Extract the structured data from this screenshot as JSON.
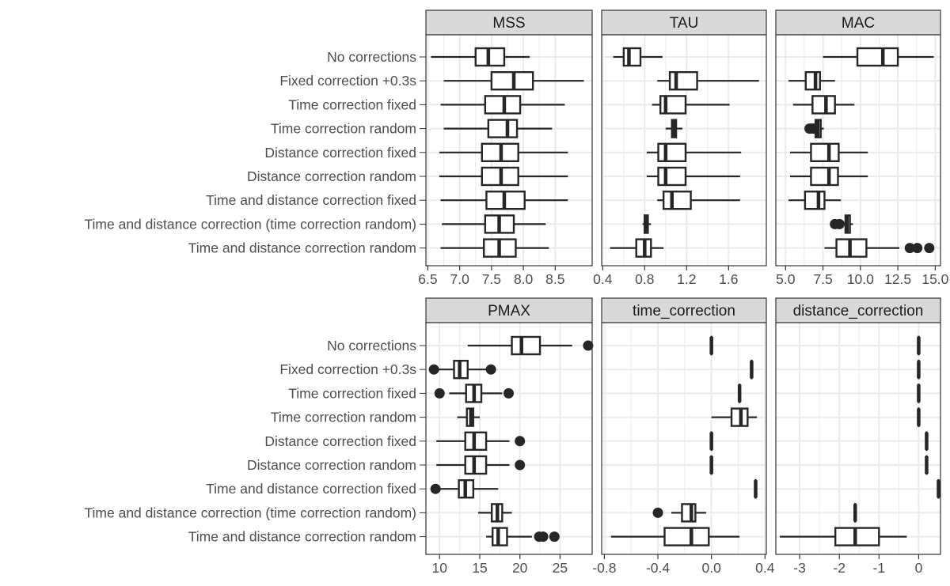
{
  "chart_data": {
    "type": "boxplot",
    "categories": [
      "No corrections",
      "Fixed correction +0.3s",
      "Time correction fixed",
      "Time correction random",
      "Distance correction fixed",
      "Distance correction random",
      "Time and distance correction fixed",
      "Time and distance correction (time correction random)",
      "Time and distance correction random"
    ],
    "colors": {
      "strip_fill": "#d9d9d9",
      "box_stroke": "#262626",
      "grid": "#ebebeb",
      "panel_border": "#333333"
    },
    "panels": [
      {
        "title": "MSS",
        "xlim": [
          6.47,
          9.08
        ],
        "ticks": [
          6.5,
          7.0,
          7.5,
          8.0,
          8.5
        ],
        "tick_labels": [
          "6.5",
          "7.0",
          "7.5",
          "8.0",
          "8.5"
        ],
        "boxes": [
          {
            "wmin": 6.55,
            "q1": 7.25,
            "med": 7.45,
            "q3": 7.7,
            "wmax": 8.1,
            "outliers": []
          },
          {
            "wmin": 6.75,
            "q1": 7.5,
            "med": 7.85,
            "q3": 8.15,
            "wmax": 8.95,
            "outliers": []
          },
          {
            "wmin": 6.7,
            "q1": 7.4,
            "med": 7.7,
            "q3": 7.95,
            "wmax": 8.65,
            "outliers": []
          },
          {
            "wmin": 6.75,
            "q1": 7.45,
            "med": 7.75,
            "q3": 7.9,
            "wmax": 8.45,
            "outliers": []
          },
          {
            "wmin": 6.68,
            "q1": 7.35,
            "med": 7.65,
            "q3": 7.92,
            "wmax": 8.7,
            "outliers": []
          },
          {
            "wmin": 6.68,
            "q1": 7.35,
            "med": 7.65,
            "q3": 7.92,
            "wmax": 8.7,
            "outliers": []
          },
          {
            "wmin": 6.7,
            "q1": 7.42,
            "med": 7.7,
            "q3": 8.02,
            "wmax": 8.7,
            "outliers": []
          },
          {
            "wmin": 6.72,
            "q1": 7.4,
            "med": 7.62,
            "q3": 7.85,
            "wmax": 8.35,
            "outliers": []
          },
          {
            "wmin": 6.7,
            "q1": 7.38,
            "med": 7.62,
            "q3": 7.88,
            "wmax": 8.4,
            "outliers": []
          }
        ]
      },
      {
        "title": "TAU",
        "xlim": [
          0.39,
          1.96
        ],
        "ticks": [
          0.4,
          0.8,
          1.2,
          1.6
        ],
        "tick_labels": [
          "0.4",
          "0.8",
          "1.2",
          "1.6"
        ],
        "boxes": [
          {
            "wmin": 0.5,
            "q1": 0.6,
            "med": 0.65,
            "q3": 0.76,
            "wmax": 0.97,
            "outliers": []
          },
          {
            "wmin": 0.92,
            "q1": 1.04,
            "med": 1.1,
            "q3": 1.3,
            "wmax": 1.89,
            "outliers": []
          },
          {
            "wmin": 0.87,
            "q1": 0.95,
            "med": 1.0,
            "q3": 1.19,
            "wmax": 1.61,
            "outliers": []
          },
          {
            "wmin": 1.0,
            "q1": 1.06,
            "med": 1.08,
            "q3": 1.1,
            "wmax": 1.16,
            "outliers": []
          },
          {
            "wmin": 0.82,
            "q1": 0.93,
            "med": 1.0,
            "q3": 1.19,
            "wmax": 1.72,
            "outliers": []
          },
          {
            "wmin": 0.82,
            "q1": 0.93,
            "med": 1.0,
            "q3": 1.19,
            "wmax": 1.71,
            "outliers": []
          },
          {
            "wmin": 0.92,
            "q1": 0.98,
            "med": 1.06,
            "q3": 1.24,
            "wmax": 1.71,
            "outliers": []
          },
          {
            "wmin": 0.78,
            "q1": 0.8,
            "med": 0.82,
            "q3": 0.83,
            "wmax": 0.86,
            "outliers": []
          },
          {
            "wmin": 0.47,
            "q1": 0.72,
            "med": 0.8,
            "q3": 0.86,
            "wmax": 0.98,
            "outliers": []
          }
        ]
      },
      {
        "title": "MAC",
        "xlim": [
          4.35,
          15.35
        ],
        "ticks": [
          5.0,
          7.5,
          10.0,
          12.5,
          15.0
        ],
        "tick_labels": [
          "5.0",
          "7.5",
          "10.0",
          "12.5",
          "15.0"
        ],
        "boxes": [
          {
            "wmin": 7.5,
            "q1": 9.8,
            "med": 11.5,
            "q3": 12.5,
            "wmax": 14.9,
            "outliers": []
          },
          {
            "wmin": 5.2,
            "q1": 6.35,
            "med": 7.0,
            "q3": 7.3,
            "wmax": 8.3,
            "outliers": []
          },
          {
            "wmin": 5.5,
            "q1": 6.8,
            "med": 7.7,
            "q3": 8.3,
            "wmax": 9.6,
            "outliers": []
          },
          {
            "wmin": 6.7,
            "q1": 7.0,
            "med": 7.15,
            "q3": 7.35,
            "wmax": 7.55,
            "outliers": [
              6.6,
              6.75,
              6.9
            ]
          },
          {
            "wmin": 5.3,
            "q1": 6.7,
            "med": 7.9,
            "q3": 8.55,
            "wmax": 10.5,
            "outliers": []
          },
          {
            "wmin": 5.3,
            "q1": 6.7,
            "med": 7.9,
            "q3": 8.5,
            "wmax": 10.5,
            "outliers": []
          },
          {
            "wmin": 5.2,
            "q1": 6.3,
            "med": 7.2,
            "q3": 7.6,
            "wmax": 8.7,
            "outliers": []
          },
          {
            "wmin": 8.9,
            "q1": 9.0,
            "med": 9.1,
            "q3": 9.3,
            "wmax": 9.5,
            "outliers": [
              8.3,
              8.6
            ]
          },
          {
            "wmin": 7.6,
            "q1": 8.4,
            "med": 9.3,
            "q3": 10.4,
            "wmax": 12.6,
            "outliers": [
              13.3,
              13.8,
              14.6
            ]
          }
        ]
      },
      {
        "title": "PMAX",
        "xlim": [
          8.3,
          29.0
        ],
        "ticks": [
          10,
          15,
          20,
          25
        ],
        "tick_labels": [
          "10",
          "15",
          "20",
          "25"
        ],
        "boxes": [
          {
            "wmin": 13.5,
            "q1": 19.0,
            "med": 20.2,
            "q3": 22.5,
            "wmax": 26.5,
            "outliers": [
              28.5
            ]
          },
          {
            "wmin": 9.8,
            "q1": 11.8,
            "med": 12.5,
            "q3": 13.5,
            "wmax": 15.8,
            "outliers": [
              9.3,
              16.4
            ]
          },
          {
            "wmin": 11.2,
            "q1": 13.3,
            "med": 14.3,
            "q3": 15.2,
            "wmax": 17.8,
            "outliers": [
              10.0,
              18.6
            ]
          },
          {
            "wmin": 12.2,
            "q1": 13.4,
            "med": 13.9,
            "q3": 14.2,
            "wmax": 15.0,
            "outliers": []
          },
          {
            "wmin": 9.6,
            "q1": 13.2,
            "med": 14.3,
            "q3": 15.8,
            "wmax": 18.7,
            "outliers": [
              20.0
            ]
          },
          {
            "wmin": 9.6,
            "q1": 13.2,
            "med": 14.3,
            "q3": 15.8,
            "wmax": 18.7,
            "outliers": [
              20.0
            ]
          },
          {
            "wmin": 9.8,
            "q1": 12.4,
            "med": 13.2,
            "q3": 14.2,
            "wmax": 17.3,
            "outliers": [
              9.5
            ]
          },
          {
            "wmin": 14.8,
            "q1": 16.5,
            "med": 17.2,
            "q3": 17.8,
            "wmax": 19.0,
            "outliers": []
          },
          {
            "wmin": 15.8,
            "q1": 16.6,
            "med": 17.3,
            "q3": 18.4,
            "wmax": 21.5,
            "outliers": [
              22.4,
              22.9,
              24.3
            ]
          }
        ]
      },
      {
        "title": "time_correction",
        "xlim": [
          -0.82,
          0.41
        ],
        "ticks": [
          -0.8,
          -0.4,
          0.0,
          0.4
        ],
        "tick_labels": [
          "-0.8",
          "-0.4",
          "0.0",
          "0.4"
        ],
        "boxes": [
          {
            "wmin": 0.0,
            "q1": 0.0,
            "med": 0.0,
            "q3": 0.0,
            "wmax": 0.0,
            "outliers": []
          },
          {
            "wmin": 0.3,
            "q1": 0.3,
            "med": 0.3,
            "q3": 0.3,
            "wmax": 0.3,
            "outliers": []
          },
          {
            "wmin": 0.21,
            "q1": 0.21,
            "med": 0.21,
            "q3": 0.21,
            "wmax": 0.21,
            "outliers": []
          },
          {
            "wmin": 0.0,
            "q1": 0.15,
            "med": 0.22,
            "q3": 0.27,
            "wmax": 0.34,
            "outliers": []
          },
          {
            "wmin": 0.0,
            "q1": 0.0,
            "med": 0.0,
            "q3": 0.0,
            "wmax": 0.0,
            "outliers": []
          },
          {
            "wmin": 0.0,
            "q1": 0.0,
            "med": 0.0,
            "q3": 0.0,
            "wmax": 0.0,
            "outliers": []
          },
          {
            "wmin": 0.33,
            "q1": 0.33,
            "med": 0.33,
            "q3": 0.33,
            "wmax": 0.33,
            "outliers": []
          },
          {
            "wmin": -0.3,
            "q1": -0.22,
            "med": -0.15,
            "q3": -0.12,
            "wmax": -0.04,
            "outliers": [
              -0.4
            ]
          },
          {
            "wmin": -0.75,
            "q1": -0.35,
            "med": -0.15,
            "q3": -0.02,
            "wmax": 0.21,
            "outliers": []
          }
        ]
      },
      {
        "title": "distance_correction",
        "xlim": [
          -3.6,
          0.55
        ],
        "ticks": [
          -3,
          -2,
          -1,
          0
        ],
        "tick_labels": [
          "-3",
          "-2",
          "-1",
          "0"
        ],
        "boxes": [
          {
            "wmin": 0.0,
            "q1": 0.0,
            "med": 0.0,
            "q3": 0.0,
            "wmax": 0.0,
            "outliers": []
          },
          {
            "wmin": 0.0,
            "q1": 0.0,
            "med": 0.0,
            "q3": 0.0,
            "wmax": 0.0,
            "outliers": []
          },
          {
            "wmin": 0.0,
            "q1": 0.0,
            "med": 0.0,
            "q3": 0.0,
            "wmax": 0.0,
            "outliers": []
          },
          {
            "wmin": 0.0,
            "q1": 0.0,
            "med": 0.0,
            "q3": 0.0,
            "wmax": 0.0,
            "outliers": []
          },
          {
            "wmin": 0.2,
            "q1": 0.2,
            "med": 0.2,
            "q3": 0.2,
            "wmax": 0.2,
            "outliers": []
          },
          {
            "wmin": 0.2,
            "q1": 0.2,
            "med": 0.2,
            "q3": 0.2,
            "wmax": 0.2,
            "outliers": []
          },
          {
            "wmin": 0.5,
            "q1": 0.5,
            "med": 0.5,
            "q3": 0.5,
            "wmax": 0.5,
            "outliers": []
          },
          {
            "wmin": -1.6,
            "q1": -1.6,
            "med": -1.6,
            "q3": -1.6,
            "wmax": -1.6,
            "outliers": []
          },
          {
            "wmin": -3.5,
            "q1": -2.1,
            "med": -1.6,
            "q3": -1.0,
            "wmax": -0.3,
            "outliers": []
          }
        ]
      }
    ]
  }
}
